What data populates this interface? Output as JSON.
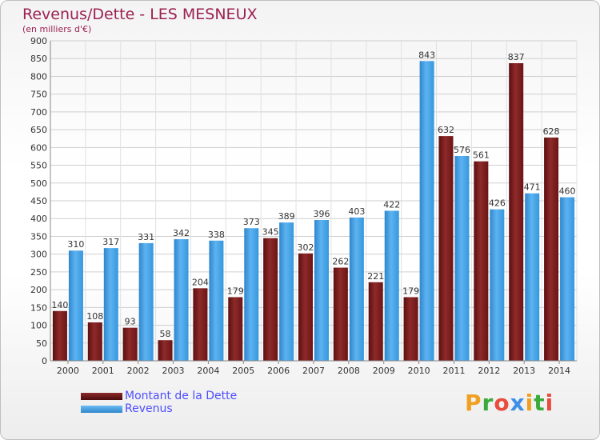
{
  "title": "Revenus/Dette - LES MESNEUX",
  "subtitle": "(en milliers d'€)",
  "colors": {
    "dette": "#7a1c1c",
    "revenus": "#3d9fe6",
    "title": "#9b2150",
    "legend_text": "#4d4dff"
  },
  "legend": {
    "dette_label": "Montant de la Dette",
    "revenus_label": "Revenus"
  },
  "logo": {
    "text": "Proxiti",
    "letters": [
      {
        "char": "P",
        "color": "#f0a020"
      },
      {
        "char": "r",
        "color": "#3aaa3a"
      },
      {
        "char": "o",
        "color": "#e74c3c"
      },
      {
        "char": "x",
        "color": "#3d8fe6"
      },
      {
        "char": "i",
        "color": "#f0a020"
      },
      {
        "char": "t",
        "color": "#3aaa3a"
      },
      {
        "char": "i",
        "color": "#e74c3c"
      }
    ]
  },
  "chart_data": {
    "type": "bar",
    "categories": [
      "2000",
      "2001",
      "2002",
      "2003",
      "2004",
      "2005",
      "2006",
      "2007",
      "2008",
      "2009",
      "2010",
      "2011",
      "2012",
      "2013",
      "2014"
    ],
    "series": [
      {
        "name": "Montant de la Dette",
        "values": [
          140,
          108,
          93,
          58,
          204,
          179,
          345,
          302,
          262,
          221,
          179,
          632,
          561,
          837,
          628
        ]
      },
      {
        "name": "Revenus",
        "values": [
          310,
          317,
          331,
          342,
          338,
          373,
          389,
          396,
          403,
          422,
          843,
          576,
          426,
          471,
          460
        ]
      }
    ],
    "ylim": [
      0,
      900
    ],
    "yticks": [
      0,
      50,
      100,
      150,
      200,
      250,
      300,
      350,
      400,
      450,
      500,
      550,
      600,
      650,
      700,
      750,
      800,
      850,
      900
    ],
    "grid": true,
    "legend_position": "bottom-left"
  }
}
